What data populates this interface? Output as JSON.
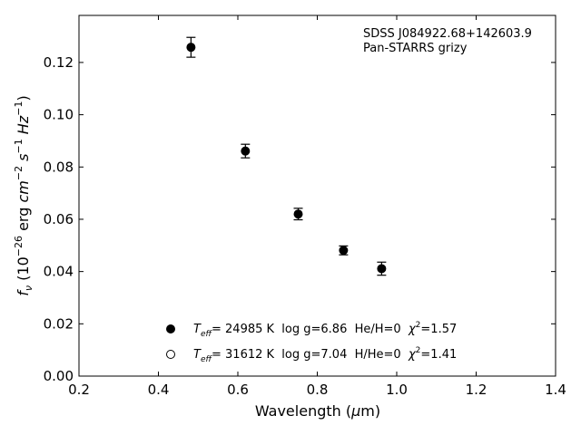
{
  "chart_data": {
    "type": "scatter",
    "title": "",
    "xlabel": "Wavelength (µm)",
    "ylabel": "fν (10⁻²⁶ erg cm⁻² s⁻¹ Hz⁻¹)",
    "xlim": [
      0.2,
      1.4
    ],
    "ylim": [
      0.0,
      0.138
    ],
    "xticks": [
      "0.2",
      "0.4",
      "0.6",
      "0.8",
      "1.0",
      "1.2",
      "1.4"
    ],
    "yticks": [
      "0.00",
      "0.02",
      "0.04",
      "0.06",
      "0.08",
      "0.10",
      "0.12"
    ],
    "grid": false,
    "annotations": [
      "SDSS J084922.68+142603.9",
      "Pan-STARRS grizy"
    ],
    "series": [
      {
        "name": "Teff= 24985 K  log g=6.86  He/H=0  χ²=1.57",
        "marker": "filled-circle",
        "points": [
          {
            "x": 0.482,
            "y": 0.1258,
            "err": 0.0038
          },
          {
            "x": 0.619,
            "y": 0.0861,
            "err": 0.0026
          },
          {
            "x": 0.752,
            "y": 0.062,
            "err": 0.0022
          },
          {
            "x": 0.866,
            "y": 0.0481,
            "err": 0.0017
          },
          {
            "x": 0.962,
            "y": 0.0411,
            "err": 0.0025
          }
        ]
      },
      {
        "name": "Teff= 31612 K  log g=7.04  H/He=0  χ²=1.41",
        "marker": "open-circle",
        "points": [
          {
            "x": 0.482,
            "y": 0.1258
          },
          {
            "x": 0.619,
            "y": 0.0861
          },
          {
            "x": 0.752,
            "y": 0.062
          },
          {
            "x": 0.866,
            "y": 0.0481
          },
          {
            "x": 0.962,
            "y": 0.0411
          }
        ]
      }
    ],
    "legend": {
      "placement": "lower-center",
      "entries": [
        {
          "t": "T",
          "sub": "eff",
          "rest": "= 24985 K  log g=6.86  He/H=0  ",
          "chi": "χ",
          "sup": "2",
          "val": "=1.57"
        },
        {
          "t": "T",
          "sub": "eff",
          "rest": "= 31612 K  log g=7.04  H/He=0  ",
          "chi": "χ",
          "sup": "2",
          "val": "=1.41"
        }
      ]
    }
  }
}
